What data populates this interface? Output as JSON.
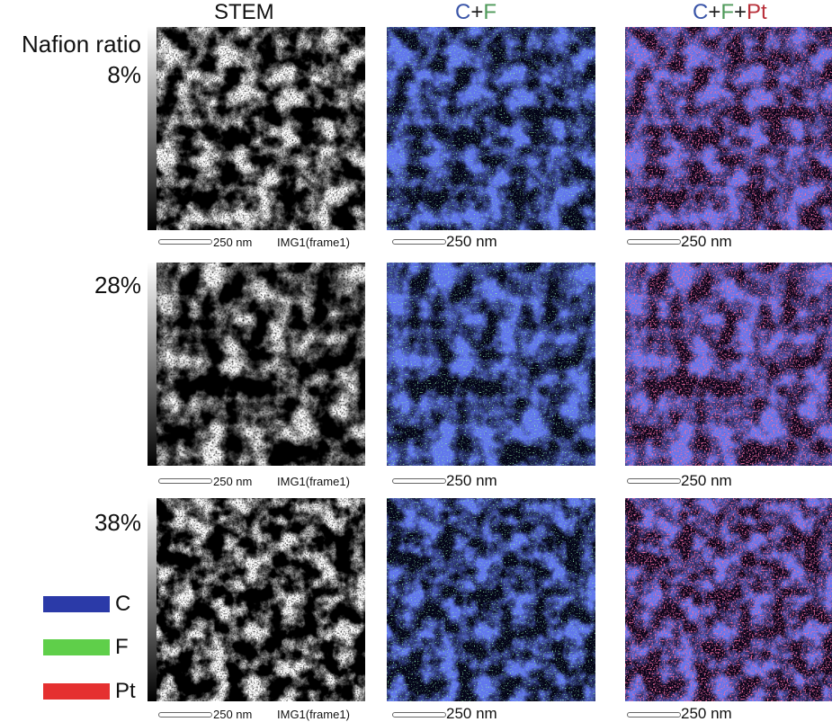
{
  "columns": {
    "stem": "STEM",
    "cf": {
      "c": "C",
      "plus1": "+",
      "f": "F"
    },
    "cfpt": {
      "c": "C",
      "plus1": "+",
      "f": "F",
      "plus2": "+",
      "pt": "Pt"
    }
  },
  "row_header": "Nafion ratio",
  "rows": [
    {
      "ratio": "8%",
      "scale_stem": "250 nm",
      "img_tag": "IMG1(frame1)",
      "scale_cf": "250 nm",
      "scale_cfpt": "250 nm"
    },
    {
      "ratio": "28%",
      "scale_stem": "250 nm",
      "img_tag": "IMG1(frame1)",
      "scale_cf": "250 nm",
      "scale_cfpt": "250 nm"
    },
    {
      "ratio": "38%",
      "scale_stem": "250 nm",
      "img_tag": "IMG1(frame1)",
      "scale_cf": "250 nm",
      "scale_cfpt": "250 nm"
    }
  ],
  "legend": [
    {
      "label": "C",
      "color": "#2b3aa8"
    },
    {
      "label": "F",
      "color": "#5fcf4a"
    },
    {
      "label": "Pt",
      "color": "#e53030"
    }
  ],
  "colors": {
    "carbon": "#3a55a8",
    "fluorine": "#4f9a5a",
    "platinum": "#b8303a"
  }
}
